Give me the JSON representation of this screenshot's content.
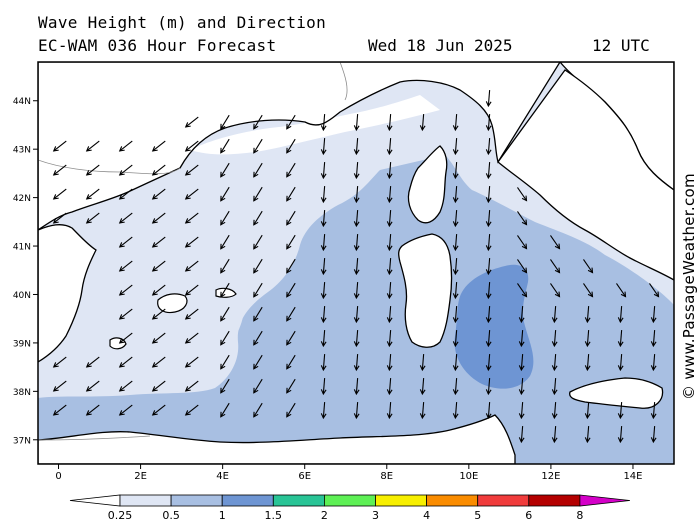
{
  "title": {
    "line1": "Wave Height (m) and Direction",
    "line2": "EC-WAM 036 Hour Forecast",
    "date": "Wed 18 Jun 2025",
    "time": "12 UTC"
  },
  "watermark": "© www.PassageWeather.com",
  "map": {
    "lon_range": [
      -0.5,
      15
    ],
    "lat_range": [
      36.5,
      44.8
    ],
    "lon_ticks": [
      {
        "value": 0,
        "label": "0"
      },
      {
        "value": 2,
        "label": "2E"
      },
      {
        "value": 4,
        "label": "4E"
      },
      {
        "value": 6,
        "label": "6E"
      },
      {
        "value": 8,
        "label": "8E"
      },
      {
        "value": 10,
        "label": "10E"
      },
      {
        "value": 12,
        "label": "12E"
      },
      {
        "value": 14,
        "label": "14E"
      }
    ],
    "lat_ticks": [
      {
        "value": 37,
        "label": "37N"
      },
      {
        "value": 38,
        "label": "38N"
      },
      {
        "value": 39,
        "label": "39N"
      },
      {
        "value": 40,
        "label": "40N"
      },
      {
        "value": 41,
        "label": "41N"
      },
      {
        "value": 42,
        "label": "42N"
      },
      {
        "value": 43,
        "label": "43N"
      },
      {
        "value": 44,
        "label": "44N"
      }
    ],
    "land_color": "#ffffff",
    "coast_color": "#000000",
    "arrow_color": "#000000",
    "wave_direction": "predominantly southward / south-westward"
  },
  "legend": {
    "bins": [
      {
        "color": "#ffffff"
      },
      {
        "color": "#dfe6f4"
      },
      {
        "color": "#a8bfe2"
      },
      {
        "color": "#6e95d3"
      },
      {
        "color": "#29c496"
      },
      {
        "color": "#5ef055"
      },
      {
        "color": "#f7ef00"
      },
      {
        "color": "#fa8c00"
      },
      {
        "color": "#f03c3c"
      },
      {
        "color": "#b40000"
      },
      {
        "color": "#d400c8"
      }
    ],
    "labels": [
      "0.25",
      "0.5",
      "1",
      "1.5",
      "2",
      "3",
      "4",
      "5",
      "6",
      "8"
    ]
  }
}
